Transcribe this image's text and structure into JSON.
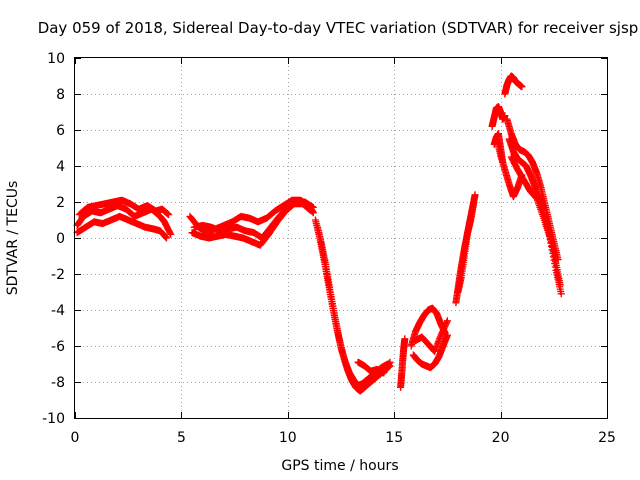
{
  "chart_data": {
    "type": "scatter",
    "title": "Day 059 of 2018, Sidereal Day-to-day VTEC variation (SDTVAR) for receiver sjsp",
    "xlabel": "GPS time / hours",
    "ylabel": "SDTVAR / TECUs",
    "xlim": [
      0,
      25
    ],
    "ylim": [
      -10,
      10
    ],
    "x_ticks": [
      0,
      5,
      10,
      15,
      20,
      25
    ],
    "y_ticks": [
      -10,
      -8,
      -6,
      -4,
      -2,
      0,
      2,
      4,
      6,
      8,
      10
    ],
    "grid": true,
    "marker": "+",
    "color": "#ff0000",
    "series": [
      {
        "name": "SDTVAR",
        "tracks": [
          {
            "x": [
              0.1,
              0.4,
              0.8,
              1.2,
              1.6,
              2.0,
              2.4,
              2.8,
              3.2,
              3.6,
              4.0,
              4.2,
              4.5
            ],
            "y": [
              0.7,
              1.2,
              1.5,
              1.4,
              1.6,
              1.8,
              1.6,
              1.2,
              1.4,
              1.6,
              1.2,
              0.9,
              0.2
            ]
          },
          {
            "x": [
              0.2,
              0.6,
              1.0,
              1.4,
              1.8,
              2.2,
              2.6,
              3.0,
              3.4,
              3.8,
              4.1,
              4.4
            ],
            "y": [
              1.3,
              1.7,
              1.8,
              1.9,
              2.0,
              2.1,
              1.9,
              1.6,
              1.8,
              1.5,
              1.6,
              1.3
            ]
          },
          {
            "x": [
              0.1,
              0.5,
              0.9,
              1.3,
              1.7,
              2.1,
              2.5,
              2.9,
              3.3,
              3.7,
              4.0,
              4.3
            ],
            "y": [
              0.3,
              0.6,
              0.9,
              0.8,
              1.0,
              1.2,
              1.0,
              0.8,
              0.6,
              0.5,
              0.4,
              0.0
            ]
          },
          {
            "x": [
              5.4,
              5.8,
              6.2,
              6.6,
              7.0,
              7.4,
              7.8,
              8.2,
              8.6,
              9.0,
              9.4,
              9.8,
              10.2,
              10.6,
              11.0,
              11.2
            ],
            "y": [
              1.2,
              0.6,
              0.3,
              0.5,
              0.7,
              0.9,
              1.2,
              1.1,
              0.9,
              1.1,
              1.5,
              1.8,
              2.1,
              2.1,
              1.8,
              1.4
            ]
          },
          {
            "x": [
              5.5,
              5.9,
              6.3,
              6.7,
              7.1,
              7.5,
              7.9,
              8.3,
              8.7,
              9.1,
              9.5,
              9.9,
              10.3,
              10.7,
              11.1
            ],
            "y": [
              0.3,
              0.1,
              0.0,
              0.1,
              0.2,
              0.1,
              0.0,
              -0.2,
              -0.4,
              0.2,
              0.9,
              1.5,
              1.9,
              1.9,
              1.5
            ]
          },
          {
            "x": [
              5.6,
              6.0,
              6.4,
              6.8,
              7.2,
              7.6,
              8.0,
              8.4,
              8.8,
              9.2,
              9.6,
              10.0,
              10.4,
              10.8,
              11.2
            ],
            "y": [
              0.6,
              0.7,
              0.6,
              0.4,
              0.5,
              0.6,
              0.4,
              0.3,
              0.0,
              0.6,
              1.2,
              1.7,
              2.0,
              2.0,
              1.7
            ]
          },
          {
            "x": [
              11.3,
              11.5,
              11.7,
              11.9,
              12.1,
              12.3,
              12.5,
              12.7,
              12.9,
              13.1,
              13.3,
              13.5,
              13.8,
              14.1,
              14.4,
              14.7
            ],
            "y": [
              1.0,
              0.0,
              -1.2,
              -2.5,
              -3.8,
              -5.0,
              -6.1,
              -6.9,
              -7.5,
              -7.9,
              -8.2,
              -8.1,
              -7.8,
              -7.5,
              -7.2,
              -7.0
            ]
          },
          {
            "x": [
              11.4,
              11.6,
              11.8,
              12.0,
              12.2,
              12.4,
              12.6,
              12.8,
              13.0,
              13.2,
              13.4,
              13.6,
              13.9,
              14.2,
              14.5,
              14.8
            ],
            "y": [
              0.6,
              -0.4,
              -1.6,
              -3.0,
              -4.3,
              -5.5,
              -6.5,
              -7.3,
              -7.9,
              -8.3,
              -8.5,
              -8.3,
              -8.0,
              -7.7,
              -7.4,
              -7.1
            ]
          },
          {
            "x": [
              13.3,
              13.6,
              13.9,
              14.2,
              14.5,
              14.8
            ],
            "y": [
              -6.9,
              -7.1,
              -7.4,
              -7.3,
              -7.5,
              -6.9
            ]
          },
          {
            "x": [
              15.3,
              15.35,
              15.4,
              15.45,
              15.5
            ],
            "y": [
              -8.3,
              -7.6,
              -6.8,
              -6.1,
              -5.6
            ]
          },
          {
            "x": [
              15.8,
              16.0,
              16.2,
              16.4,
              16.6,
              16.8,
              17.0,
              17.2,
              17.4
            ],
            "y": [
              -6.0,
              -5.2,
              -4.7,
              -4.3,
              -4.0,
              -3.9,
              -4.2,
              -4.8,
              -5.3
            ]
          },
          {
            "x": [
              15.9,
              16.1,
              16.3,
              16.5,
              16.7,
              16.9,
              17.1,
              17.3,
              17.5
            ],
            "y": [
              -6.5,
              -6.8,
              -7.0,
              -7.1,
              -7.2,
              -7.0,
              -6.6,
              -6.0,
              -5.4
            ]
          },
          {
            "x": [
              16.0,
              16.3,
              16.6,
              16.9,
              17.2,
              17.5
            ],
            "y": [
              -5.7,
              -5.5,
              -5.9,
              -6.3,
              -5.4,
              -4.6
            ]
          },
          {
            "x": [
              17.9,
              18.0,
              18.1,
              18.2,
              18.3,
              18.4,
              18.5,
              18.6,
              18.7,
              18.8
            ],
            "y": [
              -3.6,
              -2.8,
              -2.0,
              -1.3,
              -0.6,
              0.0,
              0.6,
              1.2,
              1.8,
              2.4
            ]
          },
          {
            "x": [
              18.0,
              18.15,
              18.3,
              18.45,
              18.6,
              18.75
            ],
            "y": [
              -3.0,
              -2.2,
              -1.0,
              0.3,
              1.0,
              2.0
            ]
          },
          {
            "x": [
              19.6,
              19.7,
              19.8,
              19.9,
              20.0,
              20.1,
              20.2
            ],
            "y": [
              6.2,
              6.7,
              7.2,
              7.3,
              7.0,
              6.6,
              6.8
            ]
          },
          {
            "x": [
              19.7,
              19.8,
              19.9,
              20.0,
              20.1
            ],
            "y": [
              5.2,
              5.6,
              5.8,
              5.0,
              4.2
            ]
          },
          {
            "x": [
              19.8,
              20.0,
              20.2,
              20.4,
              20.6,
              20.8,
              21.0
            ],
            "y": [
              5.6,
              4.6,
              3.8,
              3.0,
              2.3,
              2.8,
              3.5
            ]
          },
          {
            "x": [
              20.2,
              20.3,
              20.4,
              20.5,
              20.6,
              20.7,
              20.8,
              20.9,
              21.0
            ],
            "y": [
              8.0,
              8.5,
              8.8,
              9.0,
              8.9,
              8.7,
              8.6,
              8.5,
              8.4
            ]
          },
          {
            "x": [
              20.3,
              20.5,
              20.7,
              20.9,
              21.1,
              21.3,
              21.5,
              21.7,
              21.9,
              22.1,
              22.3,
              22.5,
              22.7
            ],
            "y": [
              6.6,
              5.8,
              5.2,
              4.9,
              4.8,
              4.6,
              4.2,
              3.6,
              2.8,
              1.8,
              0.8,
              -0.2,
              -1.2
            ]
          },
          {
            "x": [
              20.4,
              20.6,
              20.8,
              21.0,
              21.2,
              21.4,
              21.6,
              21.8,
              22.0,
              22.2,
              22.4,
              22.6,
              22.8
            ],
            "y": [
              5.5,
              4.8,
              4.4,
              4.2,
              4.0,
              3.5,
              2.9,
              2.2,
              1.5,
              0.6,
              -0.3,
              -1.4,
              -2.6
            ]
          },
          {
            "x": [
              20.5,
              20.8,
              21.1,
              21.4,
              21.7,
              22.0,
              22.3,
              22.6,
              22.85
            ],
            "y": [
              4.5,
              3.8,
              3.2,
              2.6,
              2.2,
              1.2,
              0.1,
              -1.8,
              -3.1
            ]
          }
        ]
      }
    ]
  }
}
